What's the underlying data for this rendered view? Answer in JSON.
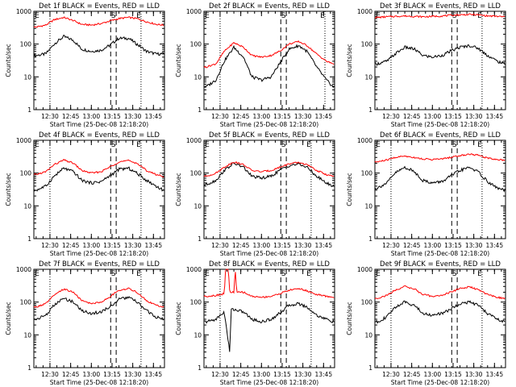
{
  "figure": {
    "title_suffix": "BLACK = Events, RED = LLD",
    "xlabel": "Start Time (25-Dec-08 12:18:20)",
    "ylabel": "Counts/sec",
    "xticks": [
      "12:30",
      "12:45",
      "13:00",
      "13:15",
      "13:30",
      "13:45"
    ],
    "yticks": [
      "1",
      "10",
      "100",
      "1000"
    ],
    "markers": [
      "E",
      "S",
      "E"
    ]
  },
  "colors": {
    "events": "#000000",
    "lld": "#ff0000"
  },
  "chart_data": [
    {
      "type": "line",
      "title": "Det 1f BLACK = Events, RED = LLD",
      "scale_y": "log",
      "ylim": [
        1,
        1000
      ],
      "xlim": [
        "12:18:20",
        "13:53"
      ],
      "dotted_lines": [
        "12:30",
        "13:36"
      ],
      "dashed_lines": [
        "13:14",
        "13:18"
      ],
      "series": [
        {
          "name": "Events",
          "x": [
            "12:20",
            "12:27",
            "12:33",
            "12:40",
            "12:47",
            "12:53",
            "13:00",
            "13:07",
            "13:13",
            "13:20",
            "13:27",
            "13:33",
            "13:40",
            "13:47",
            "13:52"
          ],
          "values": [
            45,
            50,
            100,
            170,
            130,
            70,
            60,
            65,
            90,
            150,
            150,
            100,
            60,
            50,
            50
          ]
        },
        {
          "name": "LLD",
          "x": [
            "12:20",
            "12:27",
            "12:33",
            "12:40",
            "12:47",
            "12:53",
            "13:00",
            "13:07",
            "13:13",
            "13:20",
            "13:27",
            "13:33",
            "13:40",
            "13:47",
            "13:52"
          ],
          "values": [
            330,
            380,
            550,
            650,
            520,
            400,
            380,
            420,
            500,
            600,
            650,
            600,
            480,
            400,
            380
          ]
        }
      ]
    },
    {
      "type": "line",
      "title": "Det 2f BLACK = Events, RED = LLD",
      "scale_y": "log",
      "ylim": [
        1,
        1000
      ],
      "xlim": [
        "12:18:20",
        "13:53"
      ],
      "dotted_lines": [
        "12:30",
        "13:46"
      ],
      "dashed_lines": [
        "13:14",
        "13:18"
      ],
      "series": [
        {
          "name": "Events",
          "x": [
            "12:20",
            "12:27",
            "12:33",
            "12:40",
            "12:47",
            "12:53",
            "13:00",
            "13:07",
            "13:13",
            "13:20",
            "13:27",
            "13:33",
            "13:40",
            "13:47",
            "13:52"
          ],
          "values": [
            5,
            8,
            30,
            80,
            40,
            10,
            8,
            10,
            25,
            70,
            90,
            60,
            20,
            8,
            5
          ]
        },
        {
          "name": "LLD",
          "x": [
            "12:20",
            "12:27",
            "12:33",
            "12:40",
            "12:47",
            "12:53",
            "13:00",
            "13:07",
            "13:13",
            "13:20",
            "13:27",
            "13:33",
            "13:40",
            "13:47",
            "13:52"
          ],
          "values": [
            20,
            25,
            60,
            110,
            80,
            45,
            40,
            45,
            60,
            100,
            120,
            90,
            50,
            30,
            25
          ]
        }
      ]
    },
    {
      "type": "line",
      "title": "Det 3f BLACK = Events, RED = LLD",
      "scale_y": "log",
      "ylim": [
        1,
        1000
      ],
      "xlim": [
        "12:18:20",
        "13:53"
      ],
      "dotted_lines": [
        "12:30",
        "13:36"
      ],
      "dashed_lines": [
        "13:14",
        "13:18"
      ],
      "series": [
        {
          "name": "Events",
          "x": [
            "12:20",
            "12:27",
            "12:33",
            "12:40",
            "12:47",
            "12:53",
            "13:00",
            "13:07",
            "13:13",
            "13:20",
            "13:27",
            "13:33",
            "13:40",
            "13:47",
            "13:52"
          ],
          "values": [
            25,
            30,
            50,
            80,
            70,
            45,
            40,
            45,
            60,
            80,
            90,
            75,
            45,
            30,
            25
          ]
        },
        {
          "name": "LLD",
          "x": [
            "12:20",
            "12:27",
            "12:33",
            "12:40",
            "12:47",
            "12:53",
            "13:00",
            "13:07",
            "13:13",
            "13:20",
            "13:27",
            "13:33",
            "13:40",
            "13:47",
            "13:52"
          ],
          "values": [
            650,
            680,
            700,
            720,
            700,
            680,
            700,
            720,
            750,
            780,
            800,
            780,
            720,
            700,
            680
          ]
        }
      ]
    },
    {
      "type": "line",
      "title": "Det 4f BLACK = Events, RED = LLD",
      "scale_y": "log",
      "ylim": [
        1,
        1000
      ],
      "xlim": [
        "12:18:20",
        "13:53"
      ],
      "dotted_lines": [
        "12:30",
        "13:36"
      ],
      "dashed_lines": [
        "13:14",
        "13:18"
      ],
      "series": [
        {
          "name": "Events",
          "x": [
            "12:20",
            "12:27",
            "12:33",
            "12:40",
            "12:47",
            "12:53",
            "13:00",
            "13:07",
            "13:13",
            "13:20",
            "13:27",
            "13:33",
            "13:40",
            "13:47",
            "13:52"
          ],
          "values": [
            30,
            40,
            80,
            140,
            110,
            60,
            50,
            55,
            80,
            130,
            140,
            100,
            60,
            40,
            30
          ]
        },
        {
          "name": "LLD",
          "x": [
            "12:20",
            "12:27",
            "12:33",
            "12:40",
            "12:47",
            "12:53",
            "13:00",
            "13:07",
            "13:13",
            "13:20",
            "13:27",
            "13:33",
            "13:40",
            "13:47",
            "13:52"
          ],
          "values": [
            90,
            110,
            180,
            250,
            200,
            120,
            100,
            110,
            150,
            220,
            240,
            200,
            120,
            90,
            80
          ]
        }
      ]
    },
    {
      "type": "line",
      "title": "Det 5f BLACK = Events, RED = LLD",
      "scale_y": "log",
      "ylim": [
        1,
        1000
      ],
      "xlim": [
        "12:18:20",
        "13:53"
      ],
      "dotted_lines": [
        "12:30",
        "13:36"
      ],
      "dashed_lines": [
        "13:14",
        "13:18"
      ],
      "series": [
        {
          "name": "Events",
          "x": [
            "12:20",
            "12:27",
            "12:33",
            "12:40",
            "12:47",
            "12:53",
            "13:00",
            "13:07",
            "13:13",
            "13:20",
            "13:27",
            "13:33",
            "13:40",
            "13:47",
            "13:52"
          ],
          "values": [
            45,
            60,
            120,
            200,
            150,
            80,
            70,
            80,
            120,
            170,
            190,
            150,
            80,
            50,
            40
          ]
        },
        {
          "name": "LLD",
          "x": [
            "12:20",
            "12:27",
            "12:33",
            "12:40",
            "12:47",
            "12:53",
            "13:00",
            "13:07",
            "13:13",
            "13:20",
            "13:27",
            "13:33",
            "13:40",
            "13:47",
            "13:52"
          ],
          "values": [
            80,
            100,
            150,
            220,
            180,
            120,
            110,
            120,
            150,
            190,
            210,
            180,
            120,
            90,
            80
          ]
        }
      ]
    },
    {
      "type": "line",
      "title": "Det 6f BLACK = Events, RED = LLD",
      "scale_y": "log",
      "ylim": [
        1,
        1000
      ],
      "xlim": [
        "12:18:20",
        "13:53"
      ],
      "dotted_lines": [
        "12:30",
        "13:36"
      ],
      "dashed_lines": [
        "13:14",
        "13:18"
      ],
      "series": [
        {
          "name": "Events",
          "x": [
            "12:20",
            "12:27",
            "12:33",
            "12:40",
            "12:47",
            "12:53",
            "13:00",
            "13:07",
            "13:13",
            "13:20",
            "13:27",
            "13:33",
            "13:40",
            "13:47",
            "13:52"
          ],
          "values": [
            35,
            50,
            100,
            150,
            110,
            60,
            50,
            55,
            80,
            120,
            150,
            110,
            55,
            35,
            30
          ]
        },
        {
          "name": "LLD",
          "x": [
            "12:20",
            "12:27",
            "12:33",
            "12:40",
            "12:47",
            "12:53",
            "13:00",
            "13:07",
            "13:13",
            "13:20",
            "13:27",
            "13:33",
            "13:40",
            "13:47",
            "13:52"
          ],
          "values": [
            220,
            250,
            300,
            330,
            300,
            270,
            260,
            270,
            300,
            340,
            380,
            350,
            290,
            260,
            250
          ]
        }
      ]
    },
    {
      "type": "line",
      "title": "Det 7f BLACK = Events, RED = LLD",
      "scale_y": "log",
      "ylim": [
        1,
        1000
      ],
      "xlim": [
        "12:18:20",
        "13:53"
      ],
      "dotted_lines": [
        "12:30",
        "13:36"
      ],
      "dashed_lines": [
        "13:14",
        "13:18"
      ],
      "series": [
        {
          "name": "Events",
          "x": [
            "12:20",
            "12:27",
            "12:33",
            "12:40",
            "12:47",
            "12:53",
            "13:00",
            "13:07",
            "13:13",
            "13:20",
            "13:27",
            "13:33",
            "13:40",
            "13:47",
            "13:52"
          ],
          "values": [
            30,
            40,
            80,
            130,
            100,
            55,
            45,
            50,
            70,
            120,
            140,
            100,
            55,
            35,
            30
          ]
        },
        {
          "name": "LLD",
          "x": [
            "12:20",
            "12:27",
            "12:33",
            "12:40",
            "12:47",
            "12:53",
            "13:00",
            "13:07",
            "13:13",
            "13:20",
            "13:27",
            "13:33",
            "13:40",
            "13:47",
            "13:52"
          ],
          "values": [
            70,
            90,
            160,
            250,
            200,
            110,
            90,
            100,
            140,
            230,
            260,
            200,
            110,
            80,
            70
          ]
        }
      ]
    },
    {
      "type": "line",
      "title": "Det 8f BLACK = Events, RED = LLD",
      "scale_y": "log",
      "ylim": [
        1,
        1000
      ],
      "xlim": [
        "12:18:20",
        "13:53"
      ],
      "dotted_lines": [
        "12:30",
        "13:36"
      ],
      "dashed_lines": [
        "13:14",
        "13:18"
      ],
      "series": [
        {
          "name": "Events",
          "x": [
            "12:20",
            "12:27",
            "12:33",
            "12:37",
            "12:38",
            "12:40",
            "12:47",
            "12:53",
            "13:00",
            "13:07",
            "13:13",
            "13:20",
            "13:27",
            "13:33",
            "13:40",
            "13:47",
            "13:52"
          ],
          "values": [
            25,
            30,
            50,
            3,
            60,
            60,
            50,
            30,
            25,
            30,
            45,
            80,
            90,
            70,
            40,
            30,
            25
          ]
        },
        {
          "name": "LLD",
          "x": [
            "12:20",
            "12:27",
            "12:33",
            "12:34",
            "12:36",
            "12:37",
            "12:40",
            "12:41",
            "12:42",
            "12:47",
            "12:53",
            "13:00",
            "13:07",
            "13:13",
            "13:20",
            "13:27",
            "13:33",
            "13:40",
            "13:47",
            "13:52"
          ],
          "values": [
            150,
            160,
            180,
            1000,
            1000,
            200,
            200,
            1000,
            200,
            200,
            150,
            140,
            150,
            180,
            230,
            260,
            220,
            170,
            150,
            140
          ]
        }
      ]
    },
    {
      "type": "line",
      "title": "Det 9f BLACK = Events, RED = LLD",
      "scale_y": "log",
      "ylim": [
        1,
        1000
      ],
      "xlim": [
        "12:18:20",
        "13:53"
      ],
      "dotted_lines": [
        "12:30",
        "13:36"
      ],
      "dashed_lines": [
        "13:14",
        "13:18"
      ],
      "series": [
        {
          "name": "Events",
          "x": [
            "12:20",
            "12:27",
            "12:33",
            "12:40",
            "12:47",
            "12:53",
            "13:00",
            "13:07",
            "13:13",
            "13:20",
            "13:27",
            "13:33",
            "13:40",
            "13:47",
            "13:52"
          ],
          "values": [
            25,
            35,
            70,
            100,
            80,
            45,
            40,
            45,
            60,
            90,
            100,
            80,
            45,
            30,
            25
          ]
        },
        {
          "name": "LLD",
          "x": [
            "12:20",
            "12:27",
            "12:33",
            "12:40",
            "12:47",
            "12:53",
            "13:00",
            "13:07",
            "13:13",
            "13:20",
            "13:27",
            "13:33",
            "13:40",
            "13:47",
            "13:52"
          ],
          "values": [
            130,
            160,
            230,
            300,
            250,
            170,
            150,
            160,
            200,
            260,
            290,
            240,
            170,
            140,
            130
          ]
        }
      ]
    }
  ]
}
